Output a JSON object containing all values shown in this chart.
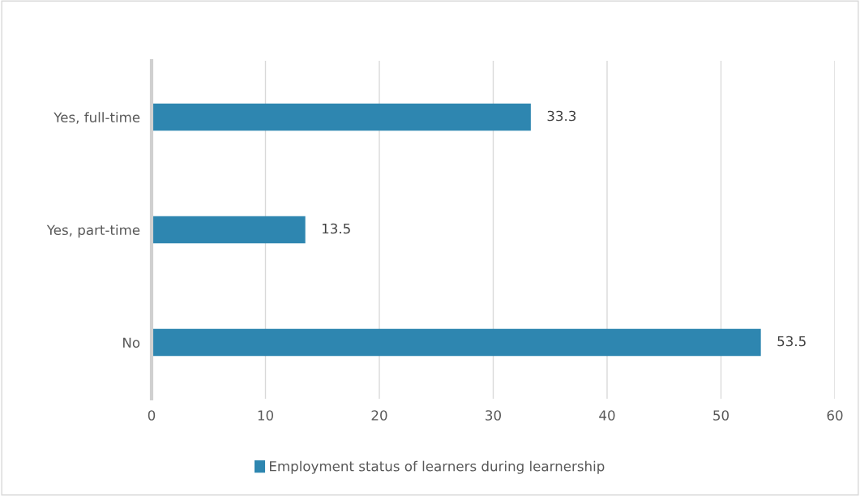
{
  "chart_data": {
    "type": "bar",
    "orientation": "horizontal",
    "categories": [
      "Yes, full-time",
      "Yes, part-time",
      "No"
    ],
    "series": [
      {
        "name": "Employment status of learners during learnership",
        "color": "#2e86b0",
        "values": [
          33.3,
          13.5,
          53.5
        ]
      }
    ],
    "xlim": [
      0,
      60
    ],
    "xticks": [
      0,
      10,
      20,
      30,
      40,
      50,
      60
    ],
    "grid": "x",
    "legend": "bottom",
    "data_labels": true
  }
}
